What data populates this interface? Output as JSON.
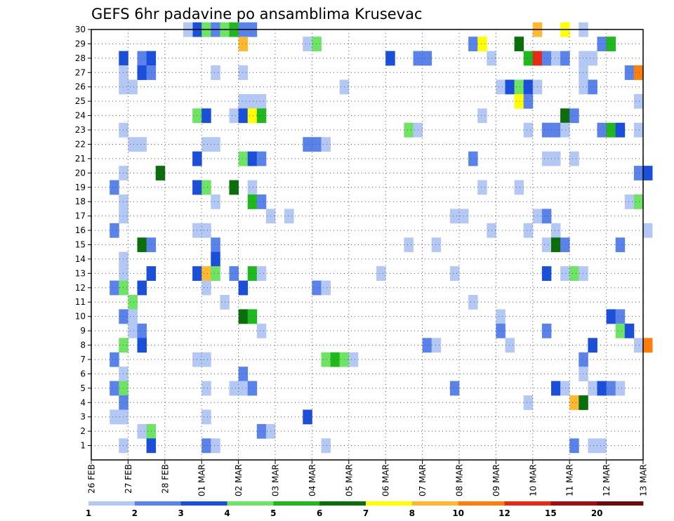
{
  "chart_data": {
    "type": "heatmap",
    "title": "GEFS 6hr padavine po ansamblima Krusevac",
    "x_tick_labels": [
      "26 FEB",
      "27 FEB",
      "28 FEB",
      "01 MAR",
      "02 MAR",
      "03 MAR",
      "04 MAR",
      "05 MAR",
      "06 MAR",
      "07 MAR",
      "08 MAR",
      "09 MAR",
      "10 MAR",
      "11 MAR",
      "12 MAR",
      "13 MAR"
    ],
    "y_tick_labels": [
      "1",
      "2",
      "3",
      "4",
      "5",
      "6",
      "7",
      "8",
      "9",
      "10",
      "11",
      "12",
      "13",
      "14",
      "15",
      "16",
      "17",
      "18",
      "19",
      "20",
      "21",
      "22",
      "23",
      "24",
      "25",
      "26",
      "27",
      "28",
      "29",
      "30"
    ],
    "x_range": [
      "26 FEB",
      "13 MAR"
    ],
    "y_range": [
      0,
      30
    ],
    "time_step_hours": 6,
    "grid": true,
    "colorbar": {
      "orientation": "horizontal",
      "placement": "bottom",
      "labels": [
        "1",
        "2",
        "3",
        "4",
        "5",
        "6",
        "7",
        "8",
        "10",
        "12",
        "15",
        "20"
      ],
      "colors": [
        "#b4c8f5",
        "#5a82eb",
        "#1a4fdc",
        "#6ee464",
        "#1fb91e",
        "#0a6e0a",
        "#ffff00",
        "#ffb830",
        "#ff7d0a",
        "#e62a14",
        "#a01010",
        "#6e0a0a"
      ]
    },
    "cells": [
      {
        "t": 11,
        "m": 30,
        "c": 3
      },
      {
        "t": 12,
        "m": 30,
        "c": 4
      },
      {
        "t": 13,
        "m": 30,
        "c": 2
      },
      {
        "t": 14,
        "m": 30,
        "c": 4
      },
      {
        "t": 15,
        "m": 30,
        "c": 5
      },
      {
        "t": 16,
        "m": 30,
        "c": 2
      },
      {
        "t": 17,
        "m": 30,
        "c": 2
      },
      {
        "t": 10,
        "m": 30,
        "c": 1
      },
      {
        "t": 48,
        "m": 30,
        "c": 8
      },
      {
        "t": 51,
        "m": 30,
        "c": 7
      },
      {
        "t": 53,
        "m": 30,
        "c": 1
      },
      {
        "t": 16,
        "m": 29,
        "c": 8
      },
      {
        "t": 23,
        "m": 29,
        "c": 1
      },
      {
        "t": 24,
        "m": 29,
        "c": 4
      },
      {
        "t": 41,
        "m": 29,
        "c": 2
      },
      {
        "t": 42,
        "m": 29,
        "c": 7
      },
      {
        "t": 46,
        "m": 29,
        "c": 6
      },
      {
        "t": 55,
        "m": 29,
        "c": 2
      },
      {
        "t": 56,
        "m": 29,
        "c": 5
      },
      {
        "t": 3,
        "m": 28,
        "c": 3
      },
      {
        "t": 5,
        "m": 28,
        "c": 2
      },
      {
        "t": 6,
        "m": 28,
        "c": 3
      },
      {
        "t": 32,
        "m": 28,
        "c": 3
      },
      {
        "t": 35,
        "m": 28,
        "c": 2
      },
      {
        "t": 36,
        "m": 28,
        "c": 2
      },
      {
        "t": 43,
        "m": 28,
        "c": 1
      },
      {
        "t": 47,
        "m": 28,
        "c": 5
      },
      {
        "t": 48,
        "m": 28,
        "c": 10
      },
      {
        "t": 49,
        "m": 28,
        "c": 2
      },
      {
        "t": 50,
        "m": 28,
        "c": 1
      },
      {
        "t": 51,
        "m": 28,
        "c": 2
      },
      {
        "t": 53,
        "m": 28,
        "c": 1
      },
      {
        "t": 54,
        "m": 28,
        "c": 1
      },
      {
        "t": 3,
        "m": 27,
        "c": 1
      },
      {
        "t": 5,
        "m": 27,
        "c": 3
      },
      {
        "t": 6,
        "m": 27,
        "c": 2
      },
      {
        "t": 13,
        "m": 27,
        "c": 1
      },
      {
        "t": 16,
        "m": 27,
        "c": 1
      },
      {
        "t": 53,
        "m": 27,
        "c": 1
      },
      {
        "t": 58,
        "m": 27,
        "c": 2
      },
      {
        "t": 59,
        "m": 27,
        "c": 9
      },
      {
        "t": 3,
        "m": 26,
        "c": 1
      },
      {
        "t": 4,
        "m": 26,
        "c": 1
      },
      {
        "t": 27,
        "m": 26,
        "c": 1
      },
      {
        "t": 44,
        "m": 26,
        "c": 1
      },
      {
        "t": 45,
        "m": 26,
        "c": 3
      },
      {
        "t": 46,
        "m": 26,
        "c": 4
      },
      {
        "t": 47,
        "m": 26,
        "c": 3
      },
      {
        "t": 48,
        "m": 26,
        "c": 1
      },
      {
        "t": 53,
        "m": 26,
        "c": 1
      },
      {
        "t": 54,
        "m": 26,
        "c": 2
      },
      {
        "t": 16,
        "m": 25,
        "c": 1
      },
      {
        "t": 17,
        "m": 25,
        "c": 1
      },
      {
        "t": 18,
        "m": 25,
        "c": 1
      },
      {
        "t": 46,
        "m": 25,
        "c": 7
      },
      {
        "t": 47,
        "m": 25,
        "c": 2
      },
      {
        "t": 59,
        "m": 25,
        "c": 1
      },
      {
        "t": 11,
        "m": 24,
        "c": 4
      },
      {
        "t": 12,
        "m": 24,
        "c": 3
      },
      {
        "t": 15,
        "m": 24,
        "c": 1
      },
      {
        "t": 16,
        "m": 24,
        "c": 3
      },
      {
        "t": 17,
        "m": 24,
        "c": 7
      },
      {
        "t": 18,
        "m": 24,
        "c": 5
      },
      {
        "t": 42,
        "m": 24,
        "c": 1
      },
      {
        "t": 51,
        "m": 24,
        "c": 6
      },
      {
        "t": 52,
        "m": 24,
        "c": 2
      },
      {
        "t": 3,
        "m": 23,
        "c": 1
      },
      {
        "t": 34,
        "m": 23,
        "c": 4
      },
      {
        "t": 35,
        "m": 23,
        "c": 1
      },
      {
        "t": 47,
        "m": 23,
        "c": 1
      },
      {
        "t": 49,
        "m": 23,
        "c": 2
      },
      {
        "t": 50,
        "m": 23,
        "c": 2
      },
      {
        "t": 51,
        "m": 23,
        "c": 1
      },
      {
        "t": 55,
        "m": 23,
        "c": 2
      },
      {
        "t": 56,
        "m": 23,
        "c": 5
      },
      {
        "t": 57,
        "m": 23,
        "c": 3
      },
      {
        "t": 59,
        "m": 23,
        "c": 1
      },
      {
        "t": 4,
        "m": 22,
        "c": 1
      },
      {
        "t": 5,
        "m": 22,
        "c": 1
      },
      {
        "t": 12,
        "m": 22,
        "c": 1
      },
      {
        "t": 13,
        "m": 22,
        "c": 1
      },
      {
        "t": 23,
        "m": 22,
        "c": 2
      },
      {
        "t": 24,
        "m": 22,
        "c": 2
      },
      {
        "t": 25,
        "m": 22,
        "c": 1
      },
      {
        "t": 11,
        "m": 21,
        "c": 3
      },
      {
        "t": 16,
        "m": 21,
        "c": 4
      },
      {
        "t": 17,
        "m": 21,
        "c": 3
      },
      {
        "t": 18,
        "m": 21,
        "c": 2
      },
      {
        "t": 41,
        "m": 21,
        "c": 2
      },
      {
        "t": 49,
        "m": 21,
        "c": 1
      },
      {
        "t": 50,
        "m": 21,
        "c": 1
      },
      {
        "t": 52,
        "m": 21,
        "c": 1
      },
      {
        "t": 3,
        "m": 20,
        "c": 1
      },
      {
        "t": 7,
        "m": 20,
        "c": 6
      },
      {
        "t": 59,
        "m": 20,
        "c": 2
      },
      {
        "t": 60,
        "m": 20,
        "c": 3
      },
      {
        "t": 2,
        "m": 19,
        "c": 2
      },
      {
        "t": 11,
        "m": 19,
        "c": 3
      },
      {
        "t": 12,
        "m": 19,
        "c": 4
      },
      {
        "t": 15,
        "m": 19,
        "c": 6
      },
      {
        "t": 17,
        "m": 19,
        "c": 1
      },
      {
        "t": 42,
        "m": 19,
        "c": 1
      },
      {
        "t": 46,
        "m": 19,
        "c": 1
      },
      {
        "t": 3,
        "m": 18,
        "c": 1
      },
      {
        "t": 13,
        "m": 18,
        "c": 1
      },
      {
        "t": 17,
        "m": 18,
        "c": 5
      },
      {
        "t": 18,
        "m": 18,
        "c": 2
      },
      {
        "t": 58,
        "m": 18,
        "c": 1
      },
      {
        "t": 59,
        "m": 18,
        "c": 4
      },
      {
        "t": 3,
        "m": 17,
        "c": 1
      },
      {
        "t": 19,
        "m": 17,
        "c": 1
      },
      {
        "t": 21,
        "m": 17,
        "c": 1
      },
      {
        "t": 39,
        "m": 17,
        "c": 1
      },
      {
        "t": 40,
        "m": 17,
        "c": 1
      },
      {
        "t": 48,
        "m": 17,
        "c": 1
      },
      {
        "t": 49,
        "m": 17,
        "c": 2
      },
      {
        "t": 2,
        "m": 16,
        "c": 2
      },
      {
        "t": 11,
        "m": 16,
        "c": 1
      },
      {
        "t": 12,
        "m": 16,
        "c": 1
      },
      {
        "t": 43,
        "m": 16,
        "c": 1
      },
      {
        "t": 47,
        "m": 16,
        "c": 1
      },
      {
        "t": 50,
        "m": 16,
        "c": 1
      },
      {
        "t": 60,
        "m": 16,
        "c": 1
      },
      {
        "t": 5,
        "m": 15,
        "c": 6
      },
      {
        "t": 6,
        "m": 15,
        "c": 2
      },
      {
        "t": 13,
        "m": 15,
        "c": 2
      },
      {
        "t": 34,
        "m": 15,
        "c": 1
      },
      {
        "t": 37,
        "m": 15,
        "c": 1
      },
      {
        "t": 49,
        "m": 15,
        "c": 1
      },
      {
        "t": 50,
        "m": 15,
        "c": 6
      },
      {
        "t": 51,
        "m": 15,
        "c": 2
      },
      {
        "t": 57,
        "m": 15,
        "c": 2
      },
      {
        "t": 3,
        "m": 14,
        "c": 1
      },
      {
        "t": 13,
        "m": 14,
        "c": 3
      },
      {
        "t": 3,
        "m": 13,
        "c": 1
      },
      {
        "t": 6,
        "m": 13,
        "c": 3
      },
      {
        "t": 11,
        "m": 13,
        "c": 3
      },
      {
        "t": 12,
        "m": 13,
        "c": 8
      },
      {
        "t": 13,
        "m": 13,
        "c": 4
      },
      {
        "t": 15,
        "m": 13,
        "c": 2
      },
      {
        "t": 17,
        "m": 13,
        "c": 5
      },
      {
        "t": 18,
        "m": 13,
        "c": 1
      },
      {
        "t": 31,
        "m": 13,
        "c": 1
      },
      {
        "t": 39,
        "m": 13,
        "c": 1
      },
      {
        "t": 49,
        "m": 13,
        "c": 3
      },
      {
        "t": 51,
        "m": 13,
        "c": 1
      },
      {
        "t": 52,
        "m": 13,
        "c": 4
      },
      {
        "t": 53,
        "m": 13,
        "c": 1
      },
      {
        "t": 2,
        "m": 12,
        "c": 2
      },
      {
        "t": 3,
        "m": 12,
        "c": 4
      },
      {
        "t": 5,
        "m": 12,
        "c": 3
      },
      {
        "t": 12,
        "m": 12,
        "c": 1
      },
      {
        "t": 16,
        "m": 12,
        "c": 3
      },
      {
        "t": 24,
        "m": 12,
        "c": 2
      },
      {
        "t": 25,
        "m": 12,
        "c": 1
      },
      {
        "t": 4,
        "m": 11,
        "c": 4
      },
      {
        "t": 14,
        "m": 11,
        "c": 1
      },
      {
        "t": 41,
        "m": 11,
        "c": 1
      },
      {
        "t": 3,
        "m": 10,
        "c": 2
      },
      {
        "t": 4,
        "m": 10,
        "c": 1
      },
      {
        "t": 16,
        "m": 10,
        "c": 6
      },
      {
        "t": 17,
        "m": 10,
        "c": 5
      },
      {
        "t": 44,
        "m": 10,
        "c": 1
      },
      {
        "t": 56,
        "m": 10,
        "c": 3
      },
      {
        "t": 57,
        "m": 10,
        "c": 2
      },
      {
        "t": 4,
        "m": 9,
        "c": 1
      },
      {
        "t": 5,
        "m": 9,
        "c": 2
      },
      {
        "t": 18,
        "m": 9,
        "c": 1
      },
      {
        "t": 44,
        "m": 9,
        "c": 2
      },
      {
        "t": 49,
        "m": 9,
        "c": 2
      },
      {
        "t": 57,
        "m": 9,
        "c": 4
      },
      {
        "t": 58,
        "m": 9,
        "c": 3
      },
      {
        "t": 3,
        "m": 8,
        "c": 4
      },
      {
        "t": 5,
        "m": 8,
        "c": 3
      },
      {
        "t": 36,
        "m": 8,
        "c": 2
      },
      {
        "t": 37,
        "m": 8,
        "c": 1
      },
      {
        "t": 45,
        "m": 8,
        "c": 1
      },
      {
        "t": 54,
        "m": 8,
        "c": 3
      },
      {
        "t": 59,
        "m": 8,
        "c": 1
      },
      {
        "t": 60,
        "m": 8,
        "c": 9
      },
      {
        "t": 2,
        "m": 7,
        "c": 2
      },
      {
        "t": 11,
        "m": 7,
        "c": 1
      },
      {
        "t": 12,
        "m": 7,
        "c": 1
      },
      {
        "t": 25,
        "m": 7,
        "c": 4
      },
      {
        "t": 26,
        "m": 7,
        "c": 5
      },
      {
        "t": 27,
        "m": 7,
        "c": 4
      },
      {
        "t": 28,
        "m": 7,
        "c": 1
      },
      {
        "t": 53,
        "m": 7,
        "c": 2
      },
      {
        "t": 3,
        "m": 6,
        "c": 1
      },
      {
        "t": 16,
        "m": 6,
        "c": 2
      },
      {
        "t": 53,
        "m": 6,
        "c": 1
      },
      {
        "t": 2,
        "m": 5,
        "c": 2
      },
      {
        "t": 3,
        "m": 5,
        "c": 4
      },
      {
        "t": 12,
        "m": 5,
        "c": 1
      },
      {
        "t": 15,
        "m": 5,
        "c": 1
      },
      {
        "t": 16,
        "m": 5,
        "c": 1
      },
      {
        "t": 17,
        "m": 5,
        "c": 2
      },
      {
        "t": 39,
        "m": 5,
        "c": 2
      },
      {
        "t": 50,
        "m": 5,
        "c": 3
      },
      {
        "t": 51,
        "m": 5,
        "c": 1
      },
      {
        "t": 54,
        "m": 5,
        "c": 1
      },
      {
        "t": 55,
        "m": 5,
        "c": 3
      },
      {
        "t": 56,
        "m": 5,
        "c": 2
      },
      {
        "t": 57,
        "m": 5,
        "c": 1
      },
      {
        "t": 3,
        "m": 4,
        "c": 2
      },
      {
        "t": 47,
        "m": 4,
        "c": 1
      },
      {
        "t": 52,
        "m": 4,
        "c": 8
      },
      {
        "t": 53,
        "m": 4,
        "c": 6
      },
      {
        "t": 2,
        "m": 3,
        "c": 1
      },
      {
        "t": 3,
        "m": 3,
        "c": 1
      },
      {
        "t": 12,
        "m": 3,
        "c": 1
      },
      {
        "t": 23,
        "m": 3,
        "c": 3
      },
      {
        "t": 5,
        "m": 2,
        "c": 1
      },
      {
        "t": 6,
        "m": 2,
        "c": 4
      },
      {
        "t": 18,
        "m": 2,
        "c": 2
      },
      {
        "t": 19,
        "m": 2,
        "c": 1
      },
      {
        "t": 3,
        "m": 1,
        "c": 1
      },
      {
        "t": 6,
        "m": 1,
        "c": 3
      },
      {
        "t": 12,
        "m": 1,
        "c": 2
      },
      {
        "t": 13,
        "m": 1,
        "c": 1
      },
      {
        "t": 25,
        "m": 1,
        "c": 1
      },
      {
        "t": 52,
        "m": 1,
        "c": 2
      },
      {
        "t": 54,
        "m": 1,
        "c": 1
      },
      {
        "t": 55,
        "m": 1,
        "c": 1
      }
    ]
  }
}
